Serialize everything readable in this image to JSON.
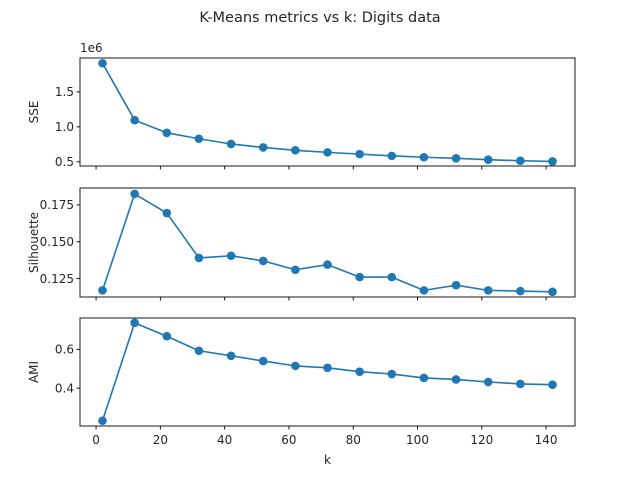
{
  "figure": {
    "title": "K-Means metrics vs k: Digits data"
  },
  "chart_data": [
    {
      "type": "line",
      "ylabel": "SSE",
      "xlabel": "",
      "offset_label": "1e6",
      "color": "#1f77b4",
      "marker": "circle",
      "grid": false,
      "x": [
        2,
        12,
        22,
        32,
        42,
        52,
        62,
        72,
        82,
        92,
        102,
        112,
        122,
        132,
        142
      ],
      "values": [
        1910000,
        1095000,
        915000,
        830000,
        755000,
        705000,
        665000,
        635000,
        610000,
        585000,
        565000,
        550000,
        530000,
        515000,
        505000
      ],
      "xlim": [
        -5,
        149
      ],
      "ylim": [
        440000,
        1985000
      ],
      "xticks": [
        0,
        20,
        40,
        60,
        80,
        100,
        120,
        140
      ],
      "yticks": [
        500000,
        1000000,
        1500000
      ],
      "yticklabels": [
        "0.5",
        "1.0",
        "1.5"
      ]
    },
    {
      "type": "line",
      "ylabel": "Silhouette",
      "xlabel": "",
      "color": "#1f77b4",
      "marker": "circle",
      "grid": false,
      "x": [
        2,
        12,
        22,
        32,
        42,
        52,
        62,
        72,
        82,
        92,
        102,
        112,
        122,
        132,
        142
      ],
      "values": [
        0.117,
        0.1825,
        0.1695,
        0.139,
        0.1405,
        0.137,
        0.131,
        0.1345,
        0.126,
        0.126,
        0.117,
        0.1205,
        0.117,
        0.1165,
        0.116
      ],
      "xlim": [
        -5,
        149
      ],
      "ylim": [
        0.1125,
        0.1865
      ],
      "xticks": [
        0,
        20,
        40,
        60,
        80,
        100,
        120,
        140
      ],
      "yticks": [
        0.125,
        0.15,
        0.175
      ],
      "yticklabels": [
        "0.125",
        "0.150",
        "0.175"
      ]
    },
    {
      "type": "line",
      "ylabel": "AMI",
      "xlabel": "k",
      "color": "#1f77b4",
      "marker": "circle",
      "grid": false,
      "x": [
        2,
        12,
        22,
        32,
        42,
        52,
        62,
        72,
        82,
        92,
        102,
        112,
        122,
        132,
        142
      ],
      "values": [
        0.232,
        0.737,
        0.668,
        0.593,
        0.567,
        0.54,
        0.515,
        0.505,
        0.485,
        0.473,
        0.453,
        0.445,
        0.432,
        0.422,
        0.418
      ],
      "xlim": [
        -5,
        149
      ],
      "ylim": [
        0.205,
        0.762
      ],
      "xticks": [
        0,
        20,
        40,
        60,
        80,
        100,
        120,
        140
      ],
      "xticklabels": [
        "0",
        "20",
        "40",
        "60",
        "80",
        "100",
        "120",
        "140"
      ],
      "yticks": [
        0.4,
        0.6
      ],
      "yticklabels": [
        "0.4",
        "0.6"
      ]
    }
  ]
}
